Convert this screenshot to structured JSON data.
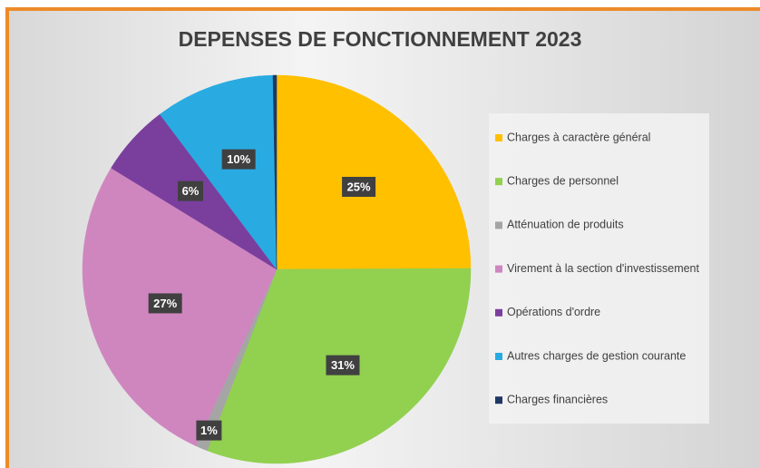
{
  "chart_data": {
    "type": "pie",
    "title": "DEPENSES DE FONCTIONNEMENT 2023",
    "categories": [
      "Charges à caractère général",
      "Charges de personnel",
      "Atténuation de produits",
      "Virement à la section d'investissement",
      "Opérations d'ordre",
      "Autres charges de gestion courante",
      "Charges financières"
    ],
    "values": [
      25,
      31,
      1,
      27,
      6,
      10,
      0.3
    ],
    "value_labels": [
      "25%",
      "31%",
      "1%",
      "27%",
      "6%",
      "10%",
      null
    ],
    "colors": [
      "#ffc000",
      "#92d050",
      "#a5a5a5",
      "#cf86bf",
      "#7a3f9d",
      "#29abe2",
      "#1f3864"
    ],
    "legend": "right"
  }
}
